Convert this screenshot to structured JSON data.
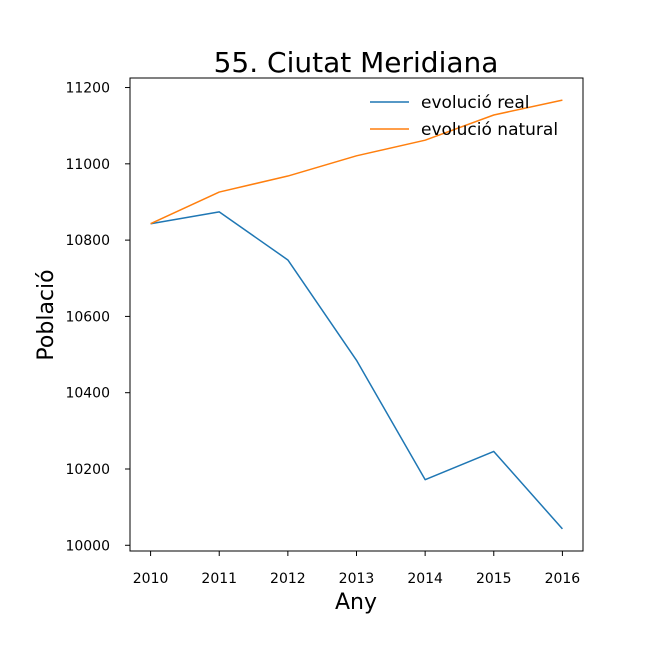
{
  "chart_data": {
    "type": "line",
    "title": "55. Ciutat Meridiana",
    "xlabel": "Any",
    "ylabel": "Població",
    "x": [
      2010,
      2011,
      2012,
      2013,
      2014,
      2015,
      2016
    ],
    "xlim": [
      2009.7,
      2016.3
    ],
    "ylim": [
      9985,
      11225
    ],
    "y_ticks": [
      10000,
      10200,
      10400,
      10600,
      10800,
      11000,
      11200
    ],
    "grid": false,
    "legend_position": "top-right",
    "series": [
      {
        "name": "evolució real",
        "color": "#1f77b4",
        "values": [
          10843,
          10874,
          10748,
          10485,
          10172,
          10246,
          10043
        ]
      },
      {
        "name": "evolució natural",
        "color": "#ff7f0e",
        "values": [
          10843,
          10926,
          10968,
          11021,
          11062,
          11128,
          11167
        ]
      }
    ]
  }
}
